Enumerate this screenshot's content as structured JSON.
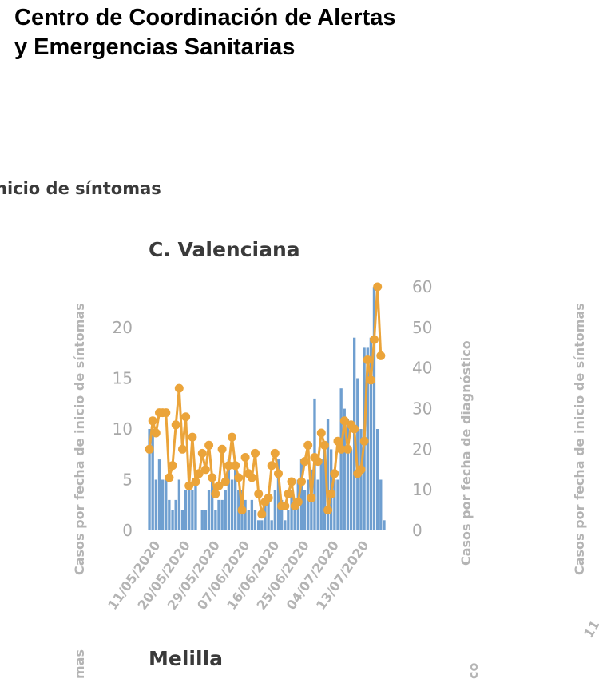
{
  "header": {
    "organization": "Centro de Coordinación de Alertas y Emergencias Sanitarias",
    "section_title_fragment": "nicio de síntomas"
  },
  "panels": {
    "main_title": "C. Valenciana",
    "next_title": "Melilla",
    "right_neighbor_axis_label": "Casos por fecha de inicio de síntomas",
    "right_neighbor_tick_fragment": "11",
    "bottom_left_label_fragment": "mas",
    "bottom_right_label_fragment": "co"
  },
  "colors": {
    "bars": "#6f9fd0",
    "line": "#eba43a",
    "axis_text": "#b4b4b4",
    "title_text": "#3a3a3a"
  },
  "chart_data": {
    "type": "bar+line",
    "title": "C. Valenciana",
    "start_date": "09/05/2020",
    "x_tick_labels": [
      "11/05/2020",
      "20/05/2020",
      "29/05/2020",
      "07/06/2020",
      "16/06/2020",
      "25/06/2020",
      "04/07/2020",
      "13/07/2020"
    ],
    "x_tick_day_offsets": [
      2,
      11,
      20,
      29,
      38,
      47,
      56,
      65
    ],
    "y_left": {
      "label": "Casos por fecha de inicio de síntomas",
      "ticks": [
        0,
        5,
        10,
        15,
        20
      ],
      "range": [
        0,
        24
      ]
    },
    "y_right": {
      "label": "Casos por fecha de diagnóstico",
      "ticks": [
        0,
        10,
        20,
        30,
        40,
        50,
        60
      ],
      "range": [
        0,
        60
      ]
    },
    "series": [
      {
        "name": "Casos por fecha de inicio de síntomas",
        "type": "bar",
        "axis": "left",
        "values": [
          10,
          10,
          5,
          7,
          5,
          5,
          3,
          2,
          3,
          5,
          2,
          4,
          4,
          4,
          5,
          0,
          2,
          2,
          4,
          5,
          2,
          3,
          3,
          4,
          7,
          5,
          6,
          4,
          4,
          3,
          2,
          3,
          2,
          1,
          1,
          3,
          3,
          1,
          4,
          7,
          3,
          1,
          2,
          4,
          3,
          5,
          7,
          4,
          5,
          6,
          13,
          5,
          7,
          8,
          11,
          8,
          5,
          5,
          14,
          12,
          11,
          8,
          19,
          15,
          10,
          18,
          18,
          19,
          24,
          10,
          5,
          1
        ]
      },
      {
        "name": "Casos por fecha de diagnóstico",
        "type": "line",
        "axis": "right",
        "values": [
          20,
          27,
          24,
          29,
          29,
          29,
          13,
          16,
          26,
          35,
          20,
          28,
          11,
          23,
          12,
          14,
          19,
          15,
          21,
          13,
          9,
          11,
          20,
          12,
          16,
          23,
          16,
          13,
          5,
          18,
          14,
          13,
          19,
          9,
          4,
          7,
          8,
          16,
          19,
          14,
          6,
          6,
          9,
          12,
          6,
          7,
          12,
          17,
          21,
          8,
          18,
          17,
          24,
          21,
          5,
          9,
          14,
          22,
          20,
          27,
          20,
          26,
          25,
          14,
          15,
          22,
          42,
          37,
          47,
          60,
          43
        ]
      }
    ],
    "legend": "none",
    "grid": false
  }
}
